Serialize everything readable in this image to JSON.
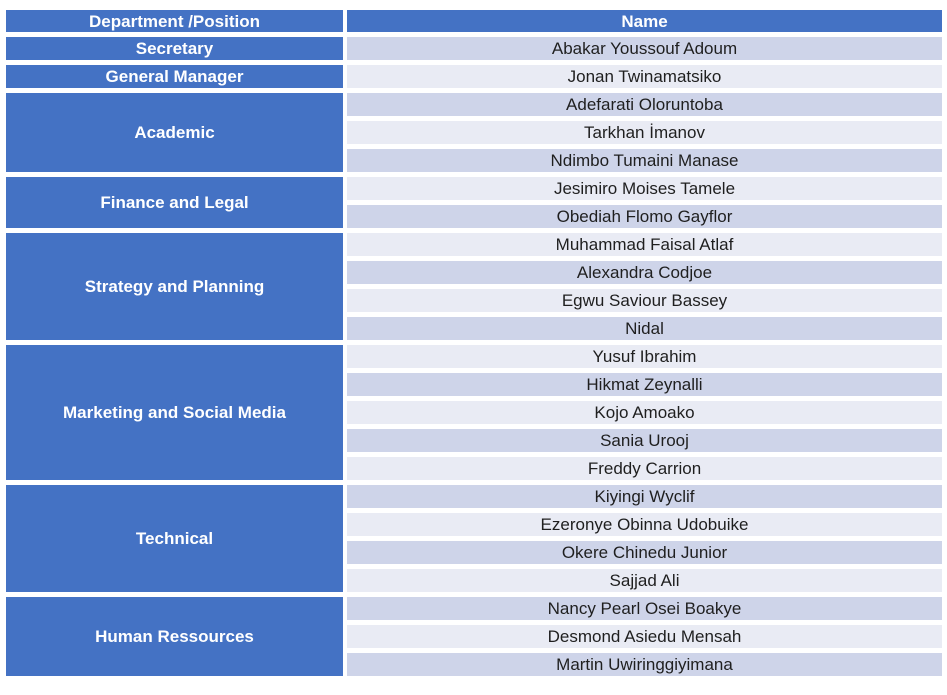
{
  "table": {
    "headers": {
      "department": "Department /Position",
      "name": "Name"
    },
    "groups": [
      {
        "department": "Secretary",
        "names": [
          "Abakar Youssouf Adoum"
        ]
      },
      {
        "department": "General Manager",
        "names": [
          "Jonan Twinamatsiko"
        ]
      },
      {
        "department": "Academic",
        "names": [
          "Adefarati Oloruntoba",
          "Tarkhan İmanov",
          "Ndimbo Tumaini Manase"
        ]
      },
      {
        "department": "Finance and Legal",
        "names": [
          "Jesimiro Moises Tamele",
          "Obediah Flomo Gayflor"
        ]
      },
      {
        "department": "Strategy and Planning",
        "names": [
          "Muhammad Faisal Atlaf",
          "Alexandra Codjoe",
          "Egwu Saviour Bassey",
          "Nidal"
        ]
      },
      {
        "department": "Marketing and Social Media",
        "names": [
          "Yusuf Ibrahim",
          "Hikmat Zeynalli",
          "Kojo Amoako",
          "Sania Urooj",
          "Freddy Carrion"
        ]
      },
      {
        "department": "Technical",
        "names": [
          "Kiyingi Wyclif",
          "Ezeronye Obinna Udobuike",
          "Okere Chinedu Junior",
          "Sajjad Ali"
        ]
      },
      {
        "department": "Human Ressources",
        "names": [
          "Nancy Pearl Osei Boakye",
          "Desmond Asiedu Mensah",
          "Martin Uwiringgiyimana"
        ]
      }
    ],
    "colors": {
      "header_blue": "#4472C4",
      "band_dark": "#CED4E9",
      "band_light": "#E9EBF4",
      "header_text": "#FFFFFF",
      "name_text": "#1F1F1F"
    }
  }
}
